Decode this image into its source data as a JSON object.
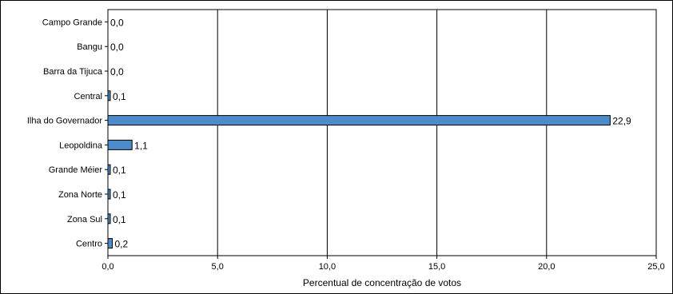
{
  "chart_data": {
    "type": "bar",
    "orientation": "horizontal",
    "title": "",
    "xlabel": "Percentual de concentração de votos",
    "ylabel": "",
    "xlim": [
      0,
      25
    ],
    "x_ticks": [
      0,
      5,
      10,
      15,
      20,
      25
    ],
    "x_tick_labels": [
      "0,0",
      "5,0",
      "10,0",
      "15,0",
      "20,0",
      "25,0"
    ],
    "grid": "vertical major gridlines",
    "legend": "none",
    "categories": [
      "Campo Grande",
      "Bangu",
      "Barra da Tijuca",
      "Central",
      "Ilha do Governador",
      "Leopoldina",
      "Grande Méier",
      "Zona Norte",
      "Zona Sul",
      "Centro"
    ],
    "values": [
      0.0,
      0.0,
      0.0,
      0.1,
      22.9,
      1.1,
      0.1,
      0.1,
      0.1,
      0.2
    ],
    "value_labels": [
      "0,0",
      "0,0",
      "0,0",
      "0,1",
      "22,9",
      "1,1",
      "0,1",
      "0,1",
      "0,1",
      "0,2"
    ],
    "bar_color": "#4a8ccc",
    "bar_stroke": "#000000"
  }
}
